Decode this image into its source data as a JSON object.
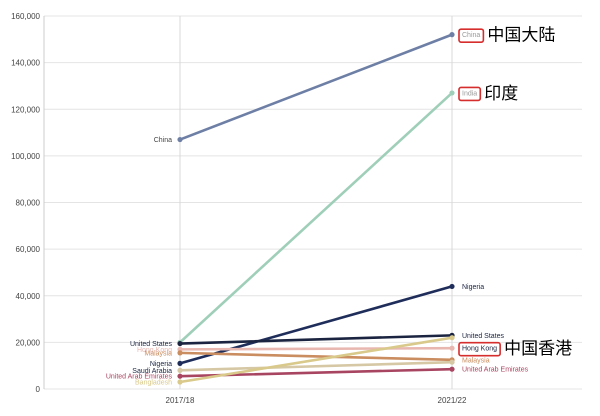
{
  "chart_data": {
    "type": "line",
    "categories": [
      "2017/18",
      "2021/22"
    ],
    "ylim": [
      0,
      160000
    ],
    "yticks": [
      0,
      20000,
      40000,
      60000,
      80000,
      100000,
      120000,
      140000,
      160000
    ],
    "ytick_labels": [
      "0",
      "20,000",
      "40,000",
      "60,000",
      "80,000",
      "100,000",
      "120,000",
      "140,000",
      "160,000"
    ],
    "grid": true,
    "series": [
      {
        "name": "China",
        "values": [
          107000,
          152000
        ],
        "color": "#6e7fa6",
        "label_start": "China",
        "label_end": "China",
        "boxed_end": true
      },
      {
        "name": "India",
        "values": [
          20000,
          127000
        ],
        "color": "#9fcfb8",
        "label_start": "",
        "label_end": "India",
        "boxed_end": true
      },
      {
        "name": "Nigeria",
        "values": [
          11000,
          44000
        ],
        "color": "#1f2d5a",
        "label_start": "Nigeria",
        "label_end": "Nigeria",
        "boxed_end": false
      },
      {
        "name": "United States",
        "values": [
          19500,
          23000
        ],
        "color": "#1b2440",
        "label_start": "United States",
        "label_end": "United States",
        "boxed_end": false
      },
      {
        "name": "Hong Kong",
        "values": [
          17000,
          17500
        ],
        "color": "#e8b7b0",
        "label_start": "Hong Kong",
        "label_end": "Hong Kong",
        "boxed_end": true
      },
      {
        "name": "Malaysia",
        "values": [
          15500,
          12500
        ],
        "color": "#c98d5f",
        "label_start": "Malaysia",
        "label_end": "Malaysia",
        "boxed_end": false
      },
      {
        "name": "Saudi Arabia",
        "values": [
          8000,
          11500
        ],
        "color": "#d6c8a4",
        "label_start": "Saudi Arabia",
        "label_end": "",
        "boxed_end": false
      },
      {
        "name": "United Arab Emirates",
        "values": [
          5500,
          8500
        ],
        "color": "#a84561",
        "label_start": "United Arab Emirates",
        "label_end": "United Arab Emirates",
        "boxed_end": false
      },
      {
        "name": "Bangladesh",
        "values": [
          3000,
          22000
        ],
        "color": "#d9c98a",
        "label_start": "Bangladesh",
        "label_end": "",
        "boxed_end": false
      }
    ],
    "annotations": [
      {
        "target": "China",
        "text": "中国大陆"
      },
      {
        "target": "India",
        "text": "印度"
      },
      {
        "target": "Hong Kong",
        "text": "中国香港"
      }
    ]
  }
}
